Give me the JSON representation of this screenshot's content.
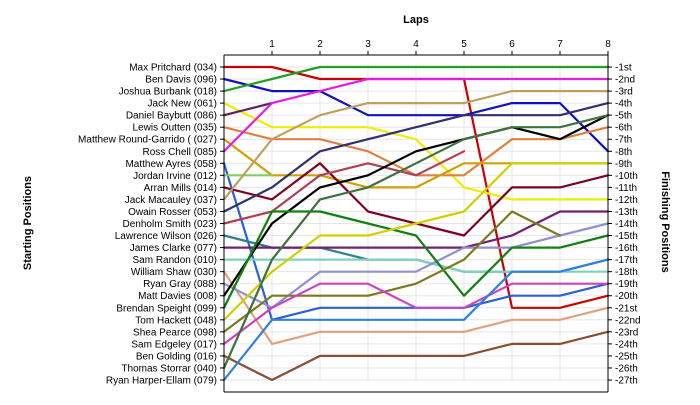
{
  "chart_data": {
    "type": "line",
    "title": "",
    "x_axis_title": "Laps",
    "left_axis_title": "Starting Positions",
    "right_axis_title": "Finishing Positions",
    "laps": [
      1,
      2,
      3,
      4,
      5,
      6,
      7,
      8
    ],
    "x_range": [
      0,
      8
    ],
    "y_range": [
      1,
      27
    ],
    "grid": true,
    "starting_labels": [
      "Max Pritchard (034)",
      "Ben Davis (096)",
      "Joshua Burbank (018)",
      "Jack New (061)",
      "Daniel Baybutt (086)",
      "Lewis Outten (035)",
      "Matthew Round-Garrido ( (027)",
      "Ross Chell (085)",
      "Matthew Ayres (058)",
      "Jordan Irvine (012)",
      "Arran Mills (014)",
      "Jack Macauley (037)",
      "Owain Rosser (053)",
      "Denholm Smith (023)",
      "Lawrence Wilson (026)",
      "James Clarke (077)",
      "Sam Randon (010)",
      "William Shaw (030)",
      "Ryan Gray (088)",
      "Matt Davies (008)",
      "Brendan Speight (099)",
      "Tom Hackett (048)",
      "Shea Pearce (098)",
      "Sam Edgeley (017)",
      "Ben Golding (016)",
      "Thomas Storrar (040)",
      "Ryan Harper-Ellam (079)"
    ],
    "finishing_labels": [
      "1st",
      "2nd",
      "3rd",
      "4th",
      "5th",
      "6th",
      "7th",
      "8th",
      "9th",
      "10th",
      "11th",
      "12th",
      "13th",
      "14th",
      "15th",
      "16th",
      "17th",
      "18th",
      "19th",
      "20th",
      "21st",
      "22nd",
      "23rd",
      "24th",
      "25th",
      "26th",
      "27th"
    ],
    "series": [
      {
        "color": "#cc0000",
        "positions": [
          1,
          1,
          2,
          2,
          2,
          2,
          21,
          21,
          20
        ]
      },
      {
        "color": "#1010c0",
        "positions": [
          2,
          3,
          3,
          5,
          5,
          5,
          4,
          4,
          8
        ]
      },
      {
        "color": "#22a022",
        "positions": [
          3,
          2,
          1,
          1,
          1,
          1,
          1,
          1,
          1
        ]
      },
      {
        "color": "#eeee00",
        "positions": [
          4,
          6,
          6,
          6,
          7,
          11,
          12,
          12,
          12
        ]
      },
      {
        "color": "#602060",
        "positions": [
          5,
          4,
          null,
          null,
          null,
          null,
          null,
          null,
          null
        ]
      },
      {
        "color": "#e08040",
        "positions": [
          6,
          7,
          7,
          8,
          10,
          10,
          7,
          7,
          6
        ]
      },
      {
        "color": "#d0a000",
        "positions": [
          7,
          10,
          10,
          11,
          11,
          9,
          9,
          9,
          9
        ]
      },
      {
        "color": "#e020e0",
        "positions": [
          8,
          4,
          3,
          2,
          2,
          2,
          2,
          2,
          2
        ]
      },
      {
        "color": "#2a60d8",
        "positions": [
          9,
          22,
          21,
          21,
          21,
          21,
          20,
          20,
          19
        ]
      },
      {
        "color": "#7cd060",
        "positions": [
          10,
          10,
          null,
          null,
          null,
          null,
          null,
          null,
          null
        ]
      },
      {
        "color": "#800020",
        "positions": [
          11,
          12,
          9,
          13,
          14,
          15,
          11,
          11,
          10
        ]
      },
      {
        "color": "#c0a060",
        "positions": [
          12,
          7,
          5,
          4,
          4,
          4,
          3,
          3,
          3
        ]
      },
      {
        "color": "#303070",
        "positions": [
          13,
          11,
          8,
          7,
          6,
          5,
          5,
          5,
          4
        ]
      },
      {
        "color": "#b04050",
        "positions": [
          14,
          13,
          10,
          9,
          10,
          8,
          null,
          null,
          null
        ]
      },
      {
        "color": "#2d8090",
        "positions": [
          15,
          16,
          16,
          17,
          17,
          18,
          18,
          18,
          17
        ]
      },
      {
        "color": "#702070",
        "positions": [
          16,
          16,
          16,
          16,
          16,
          16,
          15,
          13,
          13
        ]
      },
      {
        "color": "#80d0c0",
        "positions": [
          17,
          17,
          17,
          17,
          17,
          18,
          18,
          18,
          18
        ]
      },
      {
        "color": "#e0a080",
        "positions": [
          18,
          24,
          23,
          23,
          23,
          23,
          22,
          22,
          21
        ]
      },
      {
        "color": "#9090d0",
        "positions": [
          19,
          21,
          18,
          18,
          18,
          16,
          16,
          15,
          14
        ]
      },
      {
        "color": "#000000",
        "positions": [
          20,
          14,
          11,
          10,
          8,
          7,
          6,
          7,
          5
        ]
      },
      {
        "color": "#108010",
        "positions": [
          21,
          13,
          13,
          14,
          15,
          20,
          16,
          16,
          15
        ]
      },
      {
        "color": "#d0d000",
        "positions": [
          22,
          18,
          15,
          15,
          14,
          13,
          9,
          9,
          9
        ]
      },
      {
        "color": "#7a7a20",
        "positions": [
          23,
          20,
          20,
          20,
          19,
          17,
          13,
          15,
          null
        ]
      },
      {
        "color": "#d040c0",
        "positions": [
          24,
          21,
          19,
          19,
          21,
          21,
          19,
          19,
          19
        ]
      },
      {
        "color": "#885030",
        "positions": [
          25,
          27,
          25,
          25,
          25,
          25,
          24,
          24,
          23
        ]
      },
      {
        "color": "#407040",
        "positions": [
          26,
          17,
          12,
          11,
          9,
          7,
          6,
          6,
          5
        ]
      },
      {
        "color": "#3080e0",
        "positions": [
          27,
          22,
          22,
          22,
          22,
          22,
          18,
          18,
          17
        ]
      }
    ]
  }
}
